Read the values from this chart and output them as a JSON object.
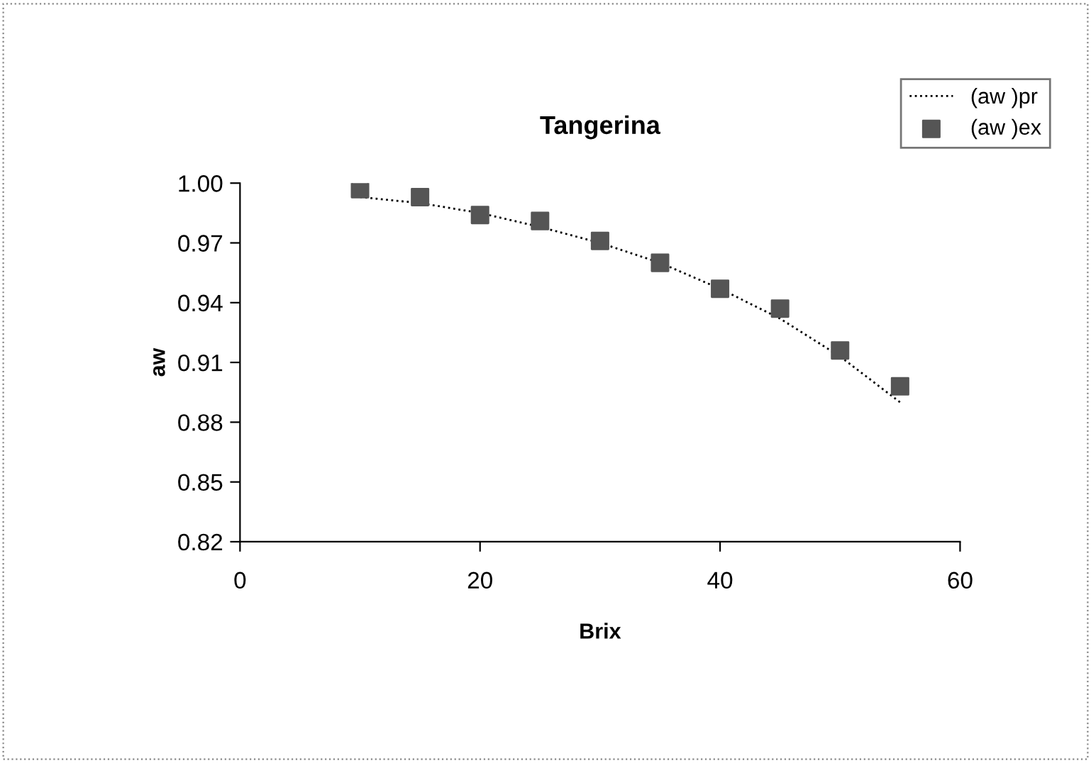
{
  "chart_data": {
    "type": "scatter",
    "title": "Tangerina",
    "xlabel": "Brix",
    "ylabel": "aw",
    "x": [
      10,
      15,
      20,
      25,
      30,
      35,
      40,
      45,
      50,
      55
    ],
    "series": [
      {
        "name": "(aw )pr",
        "type": "line",
        "color": "#000000",
        "line_style": "dotted",
        "marker": "none",
        "values": [
          0.993,
          0.99,
          0.985,
          0.978,
          0.97,
          0.96,
          0.947,
          0.932,
          0.913,
          0.89
        ]
      },
      {
        "name": "(aw )ex",
        "color": "#555555",
        "marker": "square",
        "values": [
          0.997,
          0.993,
          0.984,
          0.981,
          0.971,
          0.96,
          0.947,
          0.937,
          0.916,
          0.898
        ]
      }
    ],
    "xlim": [
      0,
      60
    ],
    "xticks": [
      0,
      20,
      40,
      60
    ],
    "ylim": [
      0.82,
      1.0
    ],
    "yticks": [
      {
        "value": 0.82,
        "label": "0.82"
      },
      {
        "value": 0.85,
        "label": "0.85"
      },
      {
        "value": 0.88,
        "label": "0.88"
      },
      {
        "value": 0.91,
        "label": "0.91"
      },
      {
        "value": 0.94,
        "label": "0.94"
      },
      {
        "value": 0.97,
        "label": "0.97"
      },
      {
        "value": 1.0,
        "label": "1.00"
      }
    ],
    "grid": false,
    "legend": "top right"
  }
}
